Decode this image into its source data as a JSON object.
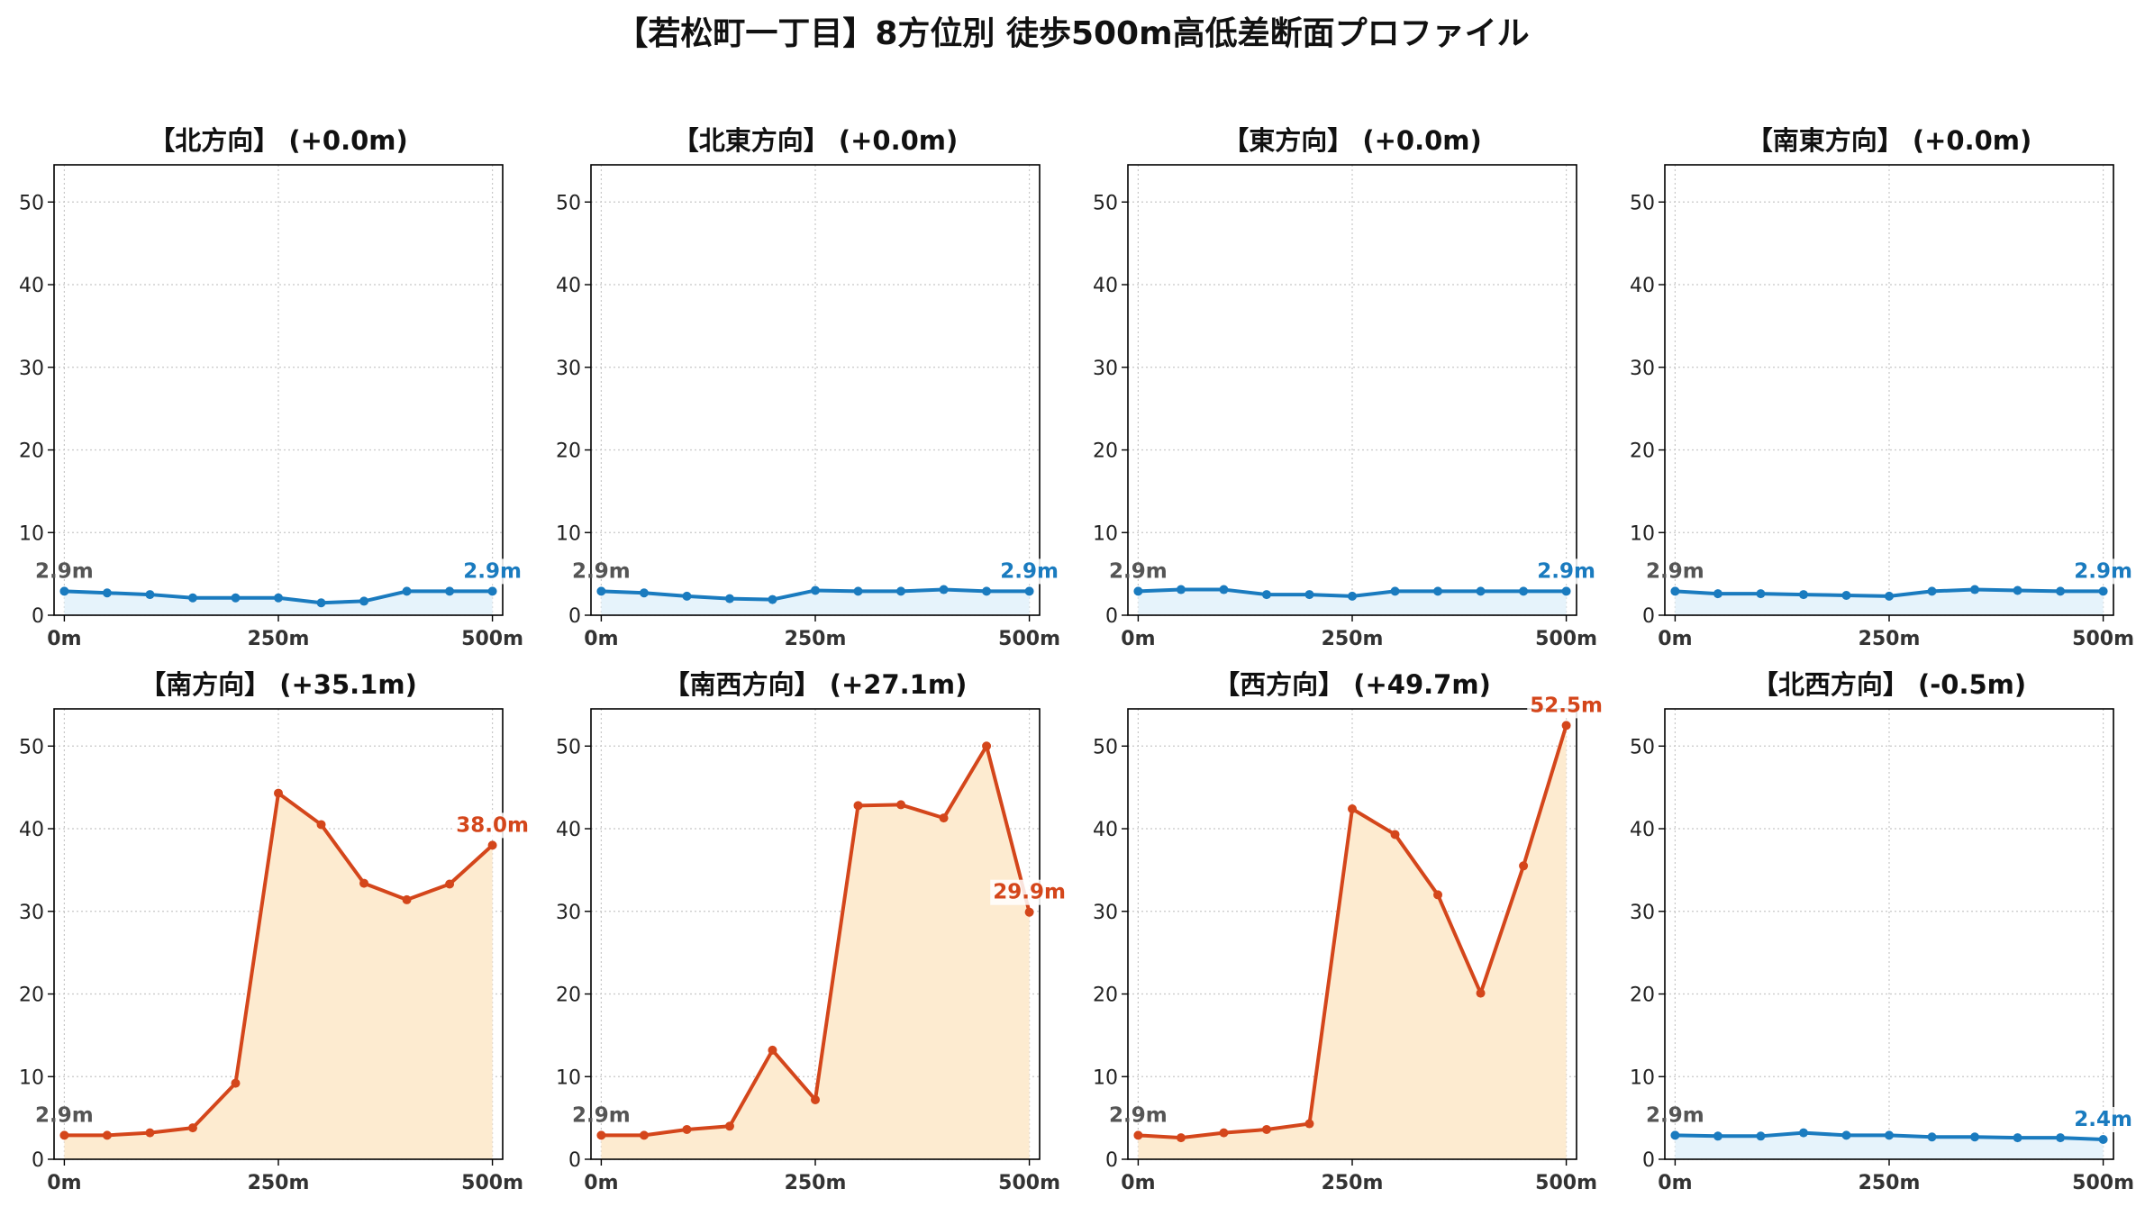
{
  "title": "【若松町一丁目】8方位別 徒歩500m高低差断面プロファイル",
  "colors": {
    "flat_line": "#1a7bbf",
    "flat_fill": "#e6f3fb",
    "up_line": "#d4461b",
    "up_fill": "#fdebd0",
    "start_label": "#555555"
  },
  "chart_data": [
    {
      "type": "area",
      "title": "【北方向】 (+0.0m)",
      "trend": "flat",
      "x": [
        0,
        50,
        100,
        150,
        200,
        250,
        300,
        350,
        400,
        450,
        500
      ],
      "values": [
        2.9,
        2.7,
        2.5,
        2.1,
        2.1,
        2.1,
        1.5,
        1.7,
        2.9,
        2.9,
        2.9
      ],
      "start_label": "2.9m",
      "end_label": "2.9m",
      "xticks": [
        0,
        250,
        500
      ],
      "xtick_labels": [
        "0m",
        "250m",
        "500m"
      ],
      "yticks": [
        0,
        10,
        20,
        30,
        40,
        50
      ],
      "xlim": [
        -12,
        512
      ],
      "ylim": [
        0,
        54.5
      ],
      "grid": true
    },
    {
      "type": "area",
      "title": "【北東方向】 (+0.0m)",
      "trend": "flat",
      "x": [
        0,
        50,
        100,
        150,
        200,
        250,
        300,
        350,
        400,
        450,
        500
      ],
      "values": [
        2.9,
        2.7,
        2.3,
        2.0,
        1.9,
        3.0,
        2.9,
        2.9,
        3.1,
        2.9,
        2.9
      ],
      "start_label": "2.9m",
      "end_label": "2.9m",
      "xticks": [
        0,
        250,
        500
      ],
      "xtick_labels": [
        "0m",
        "250m",
        "500m"
      ],
      "yticks": [
        0,
        10,
        20,
        30,
        40,
        50
      ],
      "xlim": [
        -12,
        512
      ],
      "ylim": [
        0,
        54.5
      ],
      "grid": true
    },
    {
      "type": "area",
      "title": "【東方向】 (+0.0m)",
      "trend": "flat",
      "x": [
        0,
        50,
        100,
        150,
        200,
        250,
        300,
        350,
        400,
        450,
        500
      ],
      "values": [
        2.9,
        3.1,
        3.1,
        2.5,
        2.5,
        2.3,
        2.9,
        2.9,
        2.9,
        2.9,
        2.9
      ],
      "start_label": "2.9m",
      "end_label": "2.9m",
      "xticks": [
        0,
        250,
        500
      ],
      "xtick_labels": [
        "0m",
        "250m",
        "500m"
      ],
      "yticks": [
        0,
        10,
        20,
        30,
        40,
        50
      ],
      "xlim": [
        -12,
        512
      ],
      "ylim": [
        0,
        54.5
      ],
      "grid": true
    },
    {
      "type": "area",
      "title": "【南東方向】 (+0.0m)",
      "trend": "flat",
      "x": [
        0,
        50,
        100,
        150,
        200,
        250,
        300,
        350,
        400,
        450,
        500
      ],
      "values": [
        2.9,
        2.6,
        2.6,
        2.5,
        2.4,
        2.3,
        2.9,
        3.1,
        3.0,
        2.9,
        2.9
      ],
      "start_label": "2.9m",
      "end_label": "2.9m",
      "xticks": [
        0,
        250,
        500
      ],
      "xtick_labels": [
        "0m",
        "250m",
        "500m"
      ],
      "yticks": [
        0,
        10,
        20,
        30,
        40,
        50
      ],
      "xlim": [
        -12,
        512
      ],
      "ylim": [
        0,
        54.5
      ],
      "grid": true
    },
    {
      "type": "area",
      "title": "【南方向】 (+35.1m)",
      "trend": "up",
      "x": [
        0,
        50,
        100,
        150,
        200,
        250,
        300,
        350,
        400,
        450,
        500
      ],
      "values": [
        2.9,
        2.9,
        3.2,
        3.8,
        9.2,
        44.3,
        40.5,
        33.4,
        31.4,
        33.3,
        38.0
      ],
      "start_label": "2.9m",
      "end_label": "38.0m",
      "xticks": [
        0,
        250,
        500
      ],
      "xtick_labels": [
        "0m",
        "250m",
        "500m"
      ],
      "yticks": [
        0,
        10,
        20,
        30,
        40,
        50
      ],
      "xlim": [
        -12,
        512
      ],
      "ylim": [
        0,
        54.5
      ],
      "grid": true
    },
    {
      "type": "area",
      "title": "【南西方向】 (+27.1m)",
      "trend": "up",
      "x": [
        0,
        50,
        100,
        150,
        200,
        250,
        300,
        350,
        400,
        450,
        500
      ],
      "values": [
        2.9,
        2.9,
        3.6,
        4.0,
        13.2,
        7.2,
        42.8,
        42.9,
        41.3,
        50.0,
        29.9
      ],
      "start_label": "2.9m",
      "end_label": "29.9m",
      "xticks": [
        0,
        250,
        500
      ],
      "xtick_labels": [
        "0m",
        "250m",
        "500m"
      ],
      "yticks": [
        0,
        10,
        20,
        30,
        40,
        50
      ],
      "xlim": [
        -12,
        512
      ],
      "ylim": [
        0,
        54.5
      ],
      "grid": true
    },
    {
      "type": "area",
      "title": "【西方向】 (+49.7m)",
      "trend": "up",
      "x": [
        0,
        50,
        100,
        150,
        200,
        250,
        300,
        350,
        400,
        450,
        500
      ],
      "values": [
        2.9,
        2.6,
        3.2,
        3.6,
        4.3,
        42.4,
        39.3,
        32.0,
        20.1,
        35.5,
        52.5
      ],
      "start_label": "2.9m",
      "end_label": "52.5m",
      "xticks": [
        0,
        250,
        500
      ],
      "xtick_labels": [
        "0m",
        "250m",
        "500m"
      ],
      "yticks": [
        0,
        10,
        20,
        30,
        40,
        50
      ],
      "xlim": [
        -12,
        512
      ],
      "ylim": [
        0,
        54.5
      ],
      "grid": true
    },
    {
      "type": "area",
      "title": "【北西方向】 (-0.5m)",
      "trend": "flat",
      "x": [
        0,
        50,
        100,
        150,
        200,
        250,
        300,
        350,
        400,
        450,
        500
      ],
      "values": [
        2.9,
        2.8,
        2.8,
        3.2,
        2.9,
        2.9,
        2.7,
        2.7,
        2.6,
        2.6,
        2.4
      ],
      "start_label": "2.9m",
      "end_label": "2.4m",
      "xticks": [
        0,
        250,
        500
      ],
      "xtick_labels": [
        "0m",
        "250m",
        "500m"
      ],
      "yticks": [
        0,
        10,
        20,
        30,
        40,
        50
      ],
      "xlim": [
        -12,
        512
      ],
      "ylim": [
        0,
        54.5
      ],
      "grid": true
    }
  ]
}
